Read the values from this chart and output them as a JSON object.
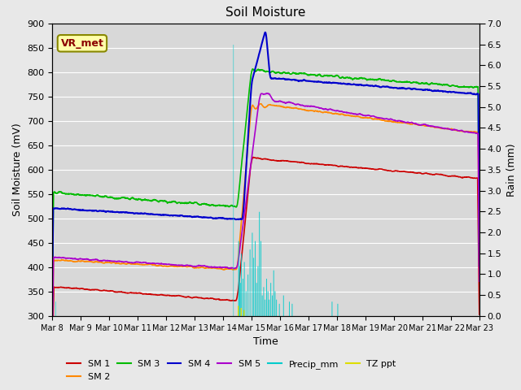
{
  "title": "Soil Moisture",
  "xlabel": "Time",
  "ylabel_left": "Soil Moisture (mV)",
  "ylabel_right": "Rain (mm)",
  "ylim_left": [
    300,
    900
  ],
  "ylim_right": [
    0.0,
    7.0
  ],
  "yticks_left": [
    300,
    350,
    400,
    450,
    500,
    550,
    600,
    650,
    700,
    750,
    800,
    850,
    900
  ],
  "yticks_right": [
    0.0,
    0.5,
    1.0,
    1.5,
    2.0,
    2.5,
    3.0,
    3.5,
    4.0,
    4.5,
    5.0,
    5.5,
    6.0,
    6.5,
    7.0
  ],
  "xtick_labels": [
    "Mar 8",
    "Mar 9",
    "Mar 10",
    "Mar 11",
    "Mar 12",
    "Mar 13",
    "Mar 14",
    "Mar 15",
    "Mar 16",
    "Mar 17",
    "Mar 18",
    "Mar 19",
    "Mar 20",
    "Mar 21",
    "Mar 22",
    "Mar 23"
  ],
  "colors": {
    "SM1": "#cc0000",
    "SM2": "#ff8800",
    "SM3": "#00bb00",
    "SM4": "#0000cc",
    "SM5": "#aa00cc",
    "Precip": "#00cccc",
    "TZppt": "#dddd00"
  },
  "annotation_text": "VR_met",
  "bg_color": "#d8d8d8"
}
